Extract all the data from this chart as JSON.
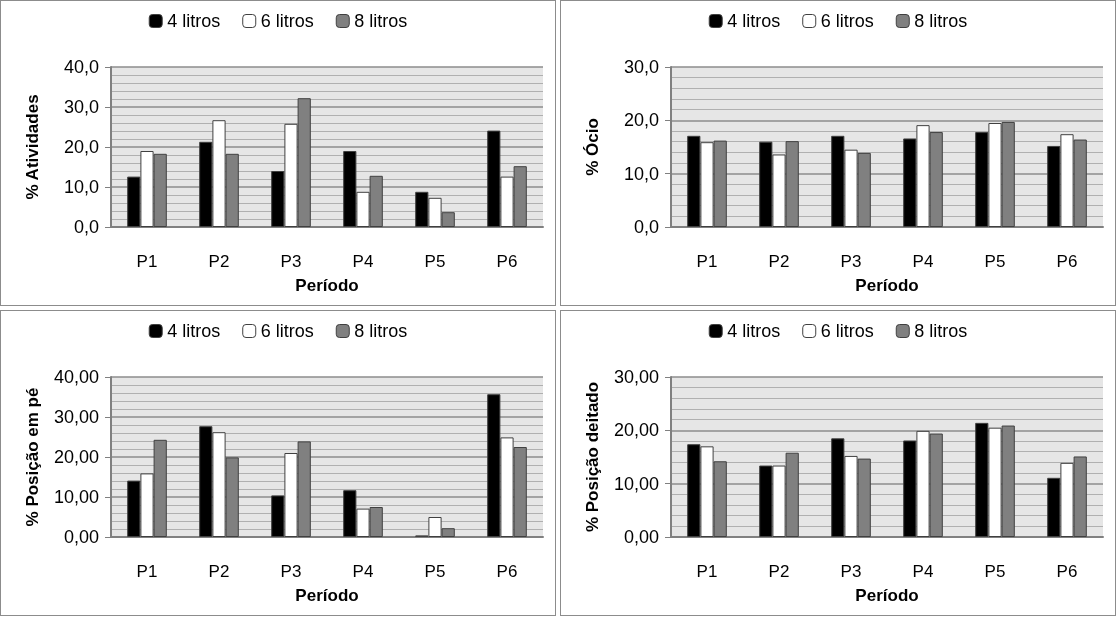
{
  "chart_data": [
    {
      "type": "bar",
      "ylabel": "% Atividades",
      "xlabel": "Período",
      "categories": [
        "P1",
        "P2",
        "P3",
        "P4",
        "P5",
        "P6"
      ],
      "series": [
        {
          "name": "4 litros",
          "color": "#000000",
          "values": [
            12.6,
            21.3,
            14.0,
            19.0,
            8.8,
            24.1
          ]
        },
        {
          "name": "6 litros",
          "color": "#ffffff",
          "values": [
            19.0,
            26.7,
            25.8,
            8.8,
            7.3,
            12.6
          ]
        },
        {
          "name": "8 litros",
          "color": "#808080",
          "values": [
            18.3,
            18.3,
            32.2,
            12.8,
            3.7,
            15.2
          ]
        }
      ],
      "ylim": [
        0,
        40
      ],
      "yticks": [
        {
          "value": 0,
          "label": "0,0"
        },
        {
          "value": 10,
          "label": "10,0"
        },
        {
          "value": 20,
          "label": "20,0"
        },
        {
          "value": 30,
          "label": "30,0"
        },
        {
          "value": 40,
          "label": "40,0"
        }
      ],
      "grid": "y",
      "legend": "top"
    },
    {
      "type": "bar",
      "ylabel": "% Ócio",
      "xlabel": "Período",
      "categories": [
        "P1",
        "P2",
        "P3",
        "P4",
        "P5",
        "P6"
      ],
      "series": [
        {
          "name": "4 litros",
          "color": "#000000",
          "values": [
            17.1,
            16.0,
            17.1,
            16.6,
            17.8,
            15.2
          ]
        },
        {
          "name": "6 litros",
          "color": "#ffffff",
          "values": [
            15.9,
            13.6,
            14.5,
            19.1,
            19.5,
            17.4
          ]
        },
        {
          "name": "8 litros",
          "color": "#808080",
          "values": [
            16.2,
            16.1,
            13.9,
            17.8,
            19.7,
            16.4
          ]
        }
      ],
      "ylim": [
        0,
        30
      ],
      "yticks": [
        {
          "value": 0,
          "label": "0,0"
        },
        {
          "value": 10,
          "label": "10,0"
        },
        {
          "value": 20,
          "label": "20,0"
        },
        {
          "value": 30,
          "label": "30,0"
        }
      ],
      "grid": "y",
      "legend": "top"
    },
    {
      "type": "bar",
      "ylabel": "% Posição em pé",
      "xlabel": "Período",
      "categories": [
        "P1",
        "P2",
        "P3",
        "P4",
        "P5",
        "P6"
      ],
      "series": [
        {
          "name": "4 litros",
          "color": "#000000",
          "values": [
            14.1,
            27.7,
            10.4,
            11.7,
            0.4,
            35.7
          ]
        },
        {
          "name": "6 litros",
          "color": "#ffffff",
          "values": [
            15.9,
            26.2,
            21.0,
            7.1,
            5.0,
            24.9
          ]
        },
        {
          "name": "8 litros",
          "color": "#808080",
          "values": [
            24.3,
            19.9,
            23.9,
            7.5,
            2.2,
            22.5
          ]
        }
      ],
      "ylim": [
        0,
        40
      ],
      "yticks": [
        {
          "value": 0,
          "label": "0,00"
        },
        {
          "value": 10,
          "label": "10,00"
        },
        {
          "value": 20,
          "label": "20,00"
        },
        {
          "value": 30,
          "label": "30,00"
        },
        {
          "value": 40,
          "label": "40,00"
        }
      ],
      "grid": "y",
      "legend": "top"
    },
    {
      "type": "bar",
      "ylabel": "% Posição deitado",
      "xlabel": "Período",
      "categories": [
        "P1",
        "P2",
        "P3",
        "P4",
        "P5",
        "P6"
      ],
      "series": [
        {
          "name": "4 litros",
          "color": "#000000",
          "values": [
            17.4,
            13.4,
            18.5,
            18.1,
            21.4,
            11.1
          ]
        },
        {
          "name": "6 litros",
          "color": "#ffffff",
          "values": [
            17.0,
            13.4,
            15.2,
            19.9,
            20.5,
            13.9
          ]
        },
        {
          "name": "8 litros",
          "color": "#808080",
          "values": [
            14.2,
            15.8,
            14.7,
            19.4,
            20.9,
            15.1
          ]
        }
      ],
      "ylim": [
        0,
        30
      ],
      "yticks": [
        {
          "value": 0,
          "label": "0,00"
        },
        {
          "value": 10,
          "label": "10,00"
        },
        {
          "value": 20,
          "label": "20,00"
        },
        {
          "value": 30,
          "label": "30,00"
        }
      ],
      "grid": "y",
      "legend": "top"
    }
  ]
}
